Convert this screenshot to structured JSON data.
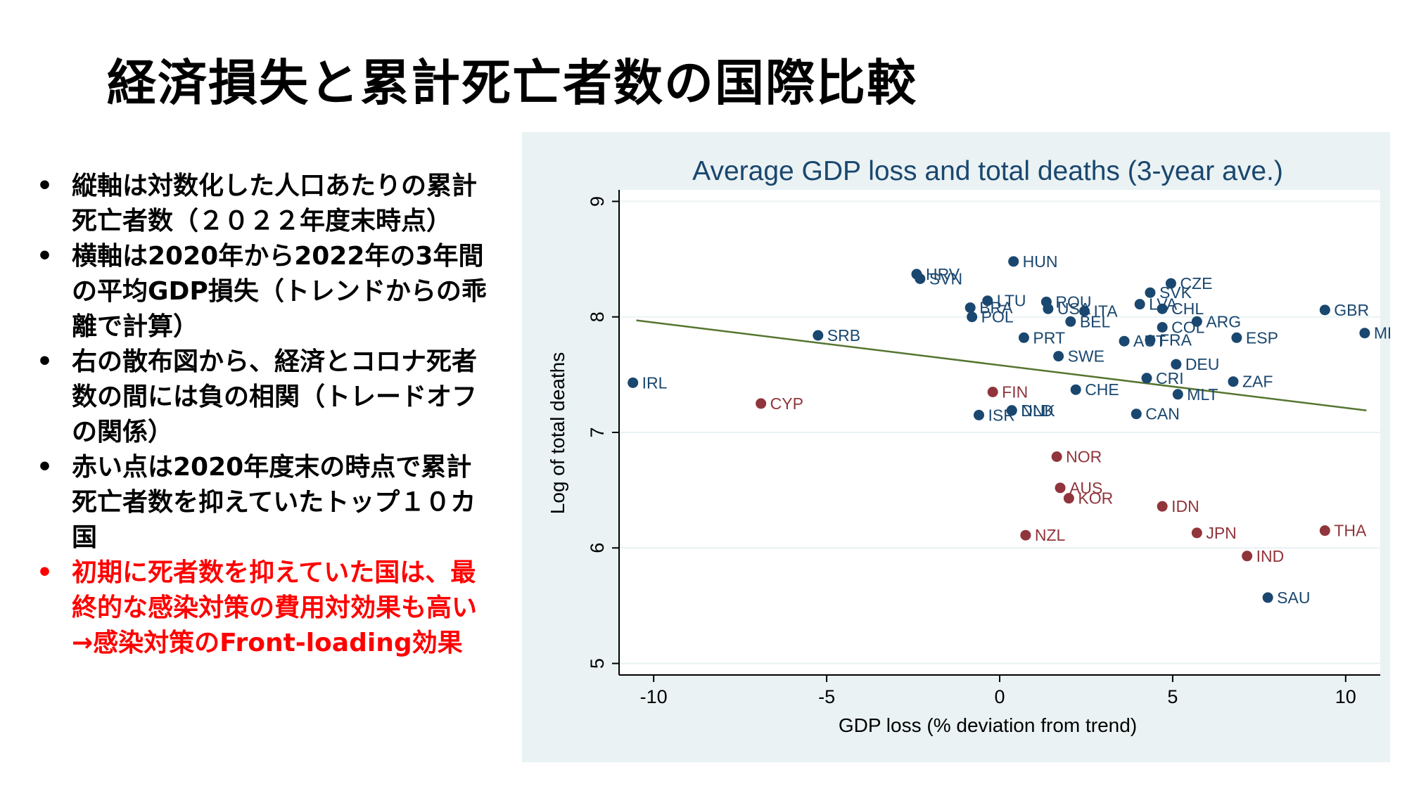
{
  "slide": {
    "title": "経済損失と累計死亡者数の国際比較",
    "bullets": [
      {
        "marker": "•",
        "text": "縦軸は対数化した人口あたりの累計死亡者数（２０２２年度末時点）",
        "color": "#000000"
      },
      {
        "marker": "•",
        "text": "横軸は2020年から2022年の3年間の平均GDP損失（トレンドからの乖離で計算）",
        "color": "#000000"
      },
      {
        "marker": "•",
        "text": "右の散布図から、経済とコロナ死者数の間には負の相関（トレードオフの関係）",
        "color": "#000000"
      },
      {
        "marker": "•",
        "text": "赤い点は2020年度末の時点で累計死亡者数を抑えていたトップ１０カ国",
        "color": "#000000"
      },
      {
        "marker": "•",
        "text": "初期に死者数を抑えていた国は、最終的な感染対策の費用対効果も高い→感染対策のFront-loading効果",
        "color": "#ff0000"
      }
    ]
  },
  "colors": {
    "blue_points": "#1a476f",
    "red_points": "#90353b",
    "fit_line": "#55752f",
    "panel_bg": "#eaf2f3",
    "plot_bg": "#ffffff",
    "grid": "#eaf2f3"
  },
  "chart_data": {
    "type": "scatter",
    "title": "Average GDP loss and total deaths (3-year ave.)",
    "xlabel": "GDP loss (% deviation from trend)",
    "ylabel": "Log of total deaths",
    "xlim": [
      -11,
      11
    ],
    "ylim": [
      4.9,
      9.1
    ],
    "xticks": [
      -10,
      -5,
      0,
      5,
      10
    ],
    "yticks": [
      5,
      6,
      7,
      8,
      9
    ],
    "grid": true,
    "fit_line": {
      "x": [
        -10.5,
        10.6
      ],
      "y": [
        7.97,
        7.19
      ]
    },
    "series": [
      {
        "group": "blue",
        "points": [
          {
            "label": "HUN",
            "x": 0.4,
            "y": 8.48
          },
          {
            "label": "HRV",
            "x": -2.4,
            "y": 8.37
          },
          {
            "label": "SVN",
            "x": -2.3,
            "y": 8.33
          },
          {
            "label": "CZE",
            "x": 4.95,
            "y": 8.29
          },
          {
            "label": "SVK",
            "x": 4.35,
            "y": 8.21
          },
          {
            "label": "LTU",
            "x": -0.35,
            "y": 8.14
          },
          {
            "label": "ROU",
            "x": 1.35,
            "y": 8.13
          },
          {
            "label": "LVA",
            "x": 4.05,
            "y": 8.11
          },
          {
            "label": "USA",
            "x": 1.4,
            "y": 8.07
          },
          {
            "label": "ITA",
            "x": 2.45,
            "y": 8.05
          },
          {
            "label": "CHL",
            "x": 4.7,
            "y": 8.07
          },
          {
            "label": "BRA",
            "x": -0.85,
            "y": 8.08
          },
          {
            "label": "GBR",
            "x": 9.4,
            "y": 8.06
          },
          {
            "label": "POL",
            "x": -0.8,
            "y": 8.0
          },
          {
            "label": "BEL",
            "x": 2.05,
            "y": 7.96
          },
          {
            "label": "ARG",
            "x": 5.7,
            "y": 7.96
          },
          {
            "label": "COL",
            "x": 4.7,
            "y": 7.91
          },
          {
            "label": "MEX",
            "x": 10.55,
            "y": 7.86
          },
          {
            "label": "SRB",
            "x": -5.25,
            "y": 7.84
          },
          {
            "label": "PRT",
            "x": 0.7,
            "y": 7.82
          },
          {
            "label": "ESP",
            "x": 6.85,
            "y": 7.82
          },
          {
            "label": "AUT",
            "x": 3.6,
            "y": 7.79
          },
          {
            "label": "FRA",
            "x": 4.35,
            "y": 7.8
          },
          {
            "label": "SWE",
            "x": 1.7,
            "y": 7.66
          },
          {
            "label": "DEU",
            "x": 5.1,
            "y": 7.59
          },
          {
            "label": "IRL",
            "x": -10.6,
            "y": 7.43
          },
          {
            "label": "CRI",
            "x": 4.25,
            "y": 7.47
          },
          {
            "label": "ZAF",
            "x": 6.75,
            "y": 7.44
          },
          {
            "label": "CHE",
            "x": 2.2,
            "y": 7.37
          },
          {
            "label": "MLT",
            "x": 5.15,
            "y": 7.33
          },
          {
            "label": "DNK",
            "x": 0.35,
            "y": 7.19
          },
          {
            "label": "NLD",
            "x": 0.35,
            "y": 7.19
          },
          {
            "label": "ISR",
            "x": -0.6,
            "y": 7.15
          },
          {
            "label": "CAN",
            "x": 3.95,
            "y": 7.16
          },
          {
            "label": "SAU",
            "x": 7.75,
            "y": 5.57
          }
        ]
      },
      {
        "group": "red",
        "points": [
          {
            "label": "FIN",
            "x": -0.2,
            "y": 7.35
          },
          {
            "label": "CYP",
            "x": -6.9,
            "y": 7.25
          },
          {
            "label": "NOR",
            "x": 1.65,
            "y": 6.79
          },
          {
            "label": "AUS",
            "x": 1.75,
            "y": 6.52
          },
          {
            "label": "KOR",
            "x": 2.0,
            "y": 6.43
          },
          {
            "label": "IDN",
            "x": 4.7,
            "y": 6.36
          },
          {
            "label": "JPN",
            "x": 5.7,
            "y": 6.13
          },
          {
            "label": "THA",
            "x": 9.4,
            "y": 6.15
          },
          {
            "label": "NZL",
            "x": 0.75,
            "y": 6.11
          },
          {
            "label": "IND",
            "x": 7.15,
            "y": 5.93
          }
        ]
      }
    ]
  }
}
